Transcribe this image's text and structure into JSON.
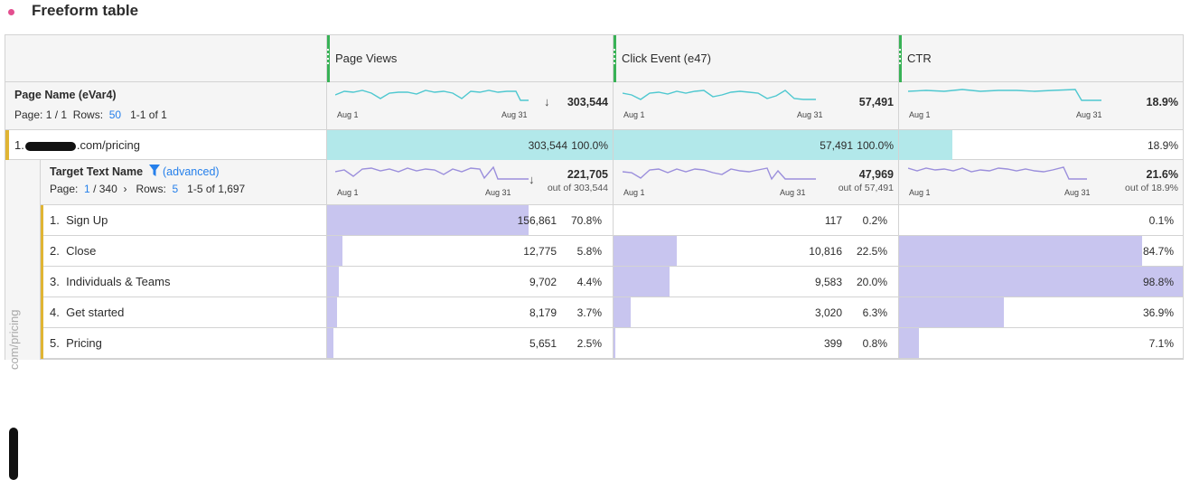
{
  "panel": {
    "title": "Freeform table",
    "dot_color": "#e34f8f"
  },
  "metrics": [
    {
      "label": "Page Views"
    },
    {
      "label": "Click Event (e47)"
    },
    {
      "label": "CTR"
    }
  ],
  "dimension": {
    "name": "Page Name (eVar4)",
    "page_label": "Page: 1 / 1",
    "rows_label": "Rows:",
    "rows_value": "50",
    "range": "1-1 of 1",
    "totals": [
      {
        "value": "303,544",
        "sorted": true
      },
      {
        "value": "57,491",
        "sorted": false
      },
      {
        "value": "18.9%",
        "sorted": false
      }
    ],
    "spark_start": "Aug 1",
    "spark_end": "Aug 31"
  },
  "top_row": {
    "index": "1.",
    "suffix": ".com/pricing",
    "cells": [
      {
        "value": "303,544",
        "pct": "100.0%",
        "fill": 1.0
      },
      {
        "value": "57,491",
        "pct": "100.0%",
        "fill": 1.0
      },
      {
        "value": "",
        "pct": "18.9%",
        "fill": 0.19
      }
    ]
  },
  "breakdown": {
    "side_label": "com/pricing",
    "name": "Target Text Name",
    "filter_label": "(advanced)",
    "page_label": "Page:",
    "page_current": "1",
    "page_total": "/ 340",
    "page_next": "›",
    "rows_label": "Rows:",
    "rows_value": "5",
    "range": "1-5 of 1,697",
    "totals": [
      {
        "value": "221,705",
        "outof": "out of 303,544",
        "sorted": true
      },
      {
        "value": "47,969",
        "outof": "out of 57,491",
        "sorted": false
      },
      {
        "value": "21.6%",
        "outof": "out of 18.9%",
        "sorted": false
      }
    ],
    "spark_start": "Aug 1",
    "spark_end": "Aug 31",
    "rows": [
      {
        "index": "1.",
        "name": "Sign Up",
        "cells": [
          {
            "value": "156,861",
            "pct": "70.8%",
            "fill": 0.708
          },
          {
            "value": "117",
            "pct": "0.2%",
            "fill": 0.002
          },
          {
            "value": "",
            "pct": "0.1%",
            "fill": 0.001
          }
        ]
      },
      {
        "index": "2.",
        "name": "Close",
        "cells": [
          {
            "value": "12,775",
            "pct": "5.8%",
            "fill": 0.058
          },
          {
            "value": "10,816",
            "pct": "22.5%",
            "fill": 0.225
          },
          {
            "value": "",
            "pct": "84.7%",
            "fill": 0.857
          }
        ]
      },
      {
        "index": "3.",
        "name": "Individuals & Teams",
        "cells": [
          {
            "value": "9,702",
            "pct": "4.4%",
            "fill": 0.044
          },
          {
            "value": "9,583",
            "pct": "20.0%",
            "fill": 0.2
          },
          {
            "value": "",
            "pct": "98.8%",
            "fill": 1.0
          }
        ]
      },
      {
        "index": "4.",
        "name": "Get started",
        "cells": [
          {
            "value": "8,179",
            "pct": "3.7%",
            "fill": 0.037
          },
          {
            "value": "3,020",
            "pct": "6.3%",
            "fill": 0.063
          },
          {
            "value": "",
            "pct": "36.9%",
            "fill": 0.373
          }
        ]
      },
      {
        "index": "5.",
        "name": "Pricing",
        "cells": [
          {
            "value": "5,651",
            "pct": "2.5%",
            "fill": 0.025
          },
          {
            "value": "399",
            "pct": "0.8%",
            "fill": 0.008
          },
          {
            "value": "",
            "pct": "7.1%",
            "fill": 0.072
          }
        ]
      }
    ]
  },
  "colors": {
    "grip": "#38b256",
    "cyan_bar": "#b2e8ea",
    "purple_bar": "#c8c5ef",
    "accent": "#2680eb",
    "row_marker": "#e0b534"
  }
}
